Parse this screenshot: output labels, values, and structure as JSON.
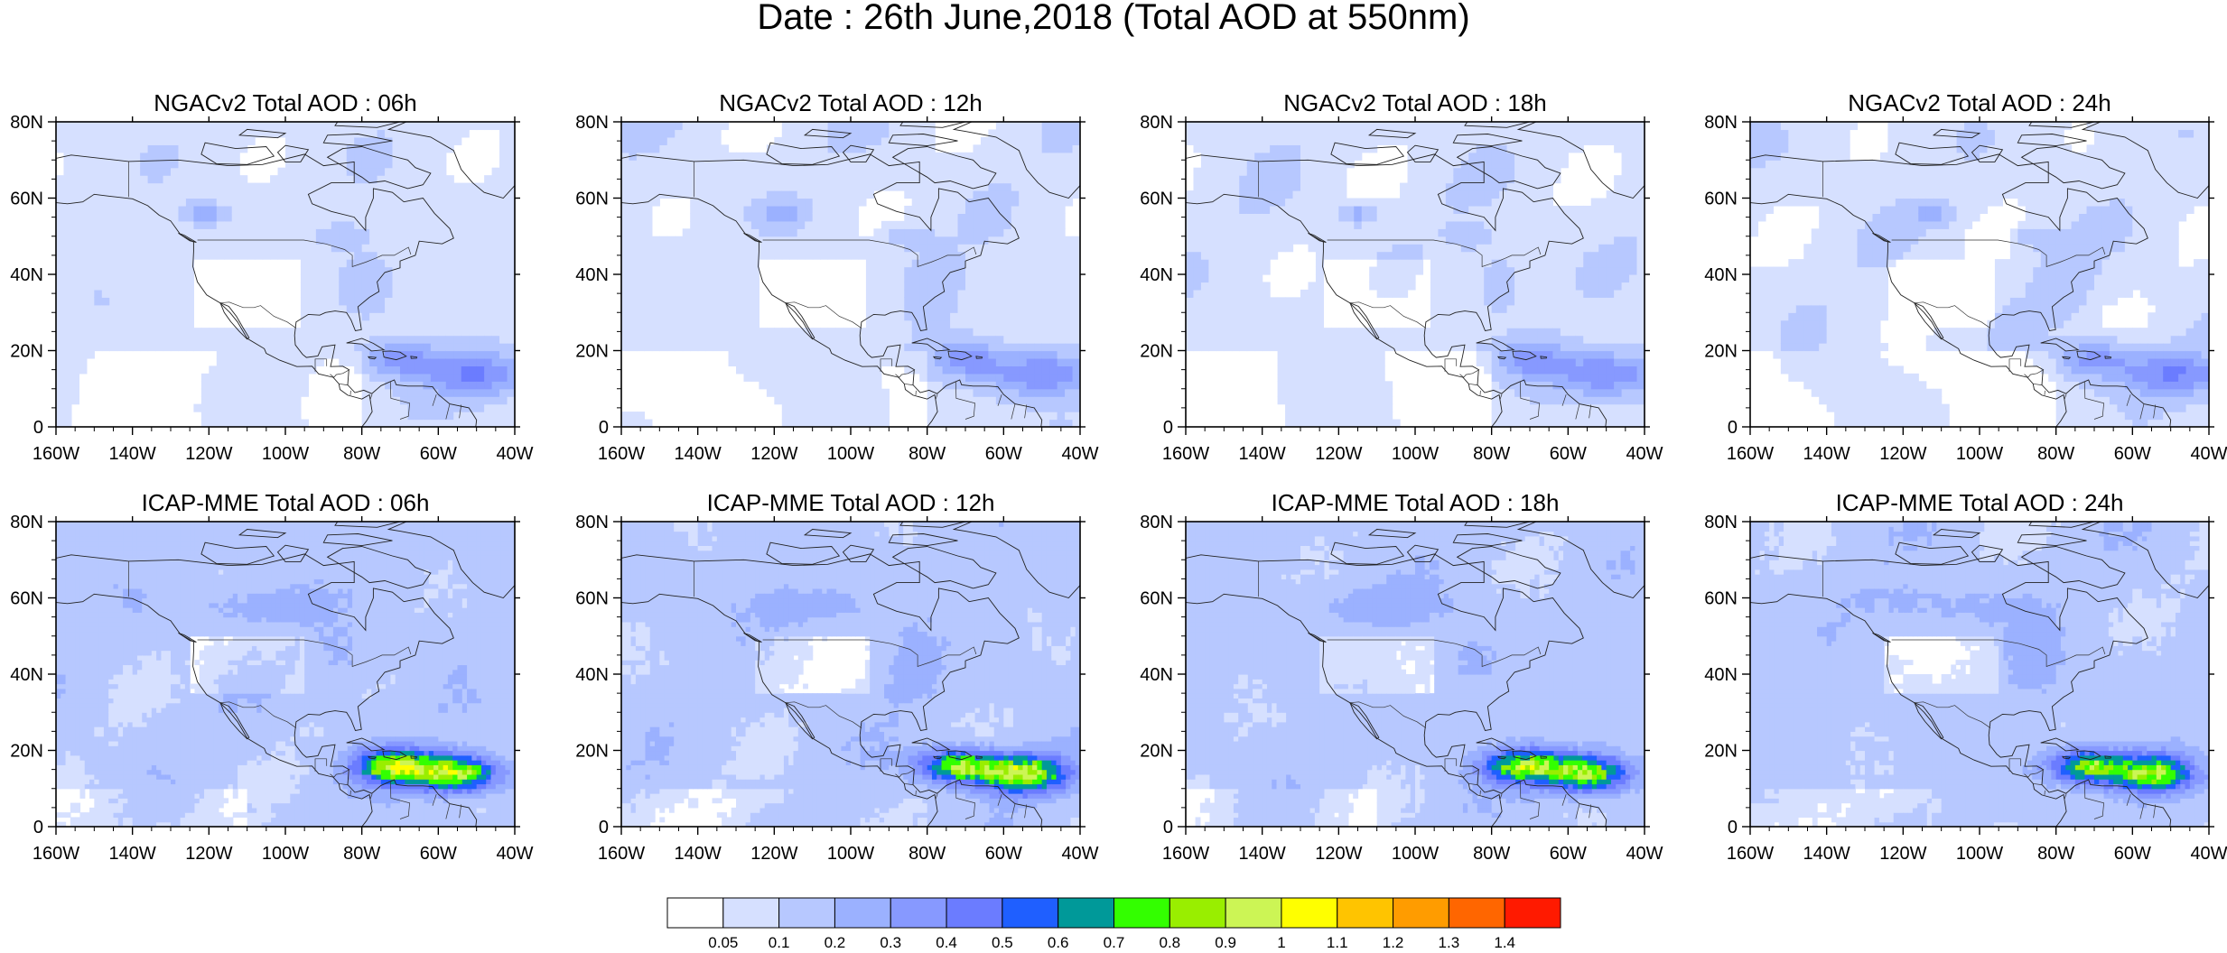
{
  "figure": {
    "title": "Date : 26th June,2018 (Total AOD at 550nm)"
  },
  "panels": [
    {
      "id": "ngac-06",
      "title": "NGACv2 Total AOD : 06h",
      "model": "ngac",
      "dust_level": 0.45
    },
    {
      "id": "ngac-12",
      "title": "NGACv2 Total AOD : 12h",
      "model": "ngac",
      "dust_level": 0.45
    },
    {
      "id": "ngac-18",
      "title": "NGACv2 Total AOD : 18h",
      "model": "ngac",
      "dust_level": 0.45
    },
    {
      "id": "ngac-24",
      "title": "NGACv2 Total AOD : 24h",
      "model": "ngac",
      "dust_level": 0.45
    },
    {
      "id": "icap-06",
      "title": "ICAP-MME Total AOD : 06h",
      "model": "icap",
      "dust_level": 0.8
    },
    {
      "id": "icap-12",
      "title": "ICAP-MME Total AOD : 12h",
      "model": "icap",
      "dust_level": 0.8
    },
    {
      "id": "icap-18",
      "title": "ICAP-MME Total AOD : 18h",
      "model": "icap",
      "dust_level": 0.75
    },
    {
      "id": "icap-24",
      "title": "ICAP-MME Total AOD : 24h",
      "model": "icap",
      "dust_level": 0.7
    }
  ],
  "axes": {
    "lon_ticks": [
      "160W",
      "140W",
      "120W",
      "100W",
      "80W",
      "60W",
      "40W"
    ],
    "lat_ticks": [
      "0",
      "20N",
      "40N",
      "60N",
      "80N"
    ],
    "lon_range": [
      -160,
      -40
    ],
    "lat_range": [
      0,
      80
    ]
  },
  "colorbar": {
    "labels": [
      "0.05",
      "0.1",
      "0.2",
      "0.3",
      "0.4",
      "0.5",
      "0.6",
      "0.7",
      "0.8",
      "0.9",
      "1",
      "1.1",
      "1.2",
      "1.3",
      "1.4"
    ],
    "colors": [
      "#ffffff",
      "#d6e0ff",
      "#b7c8ff",
      "#9bb1ff",
      "#8799ff",
      "#6b7cff",
      "#1f5fff",
      "#009999",
      "#33ff00",
      "#99ee00",
      "#ccf555",
      "#ffff00",
      "#ffc400",
      "#ff9c00",
      "#ff6600",
      "#ff1a00"
    ]
  }
}
